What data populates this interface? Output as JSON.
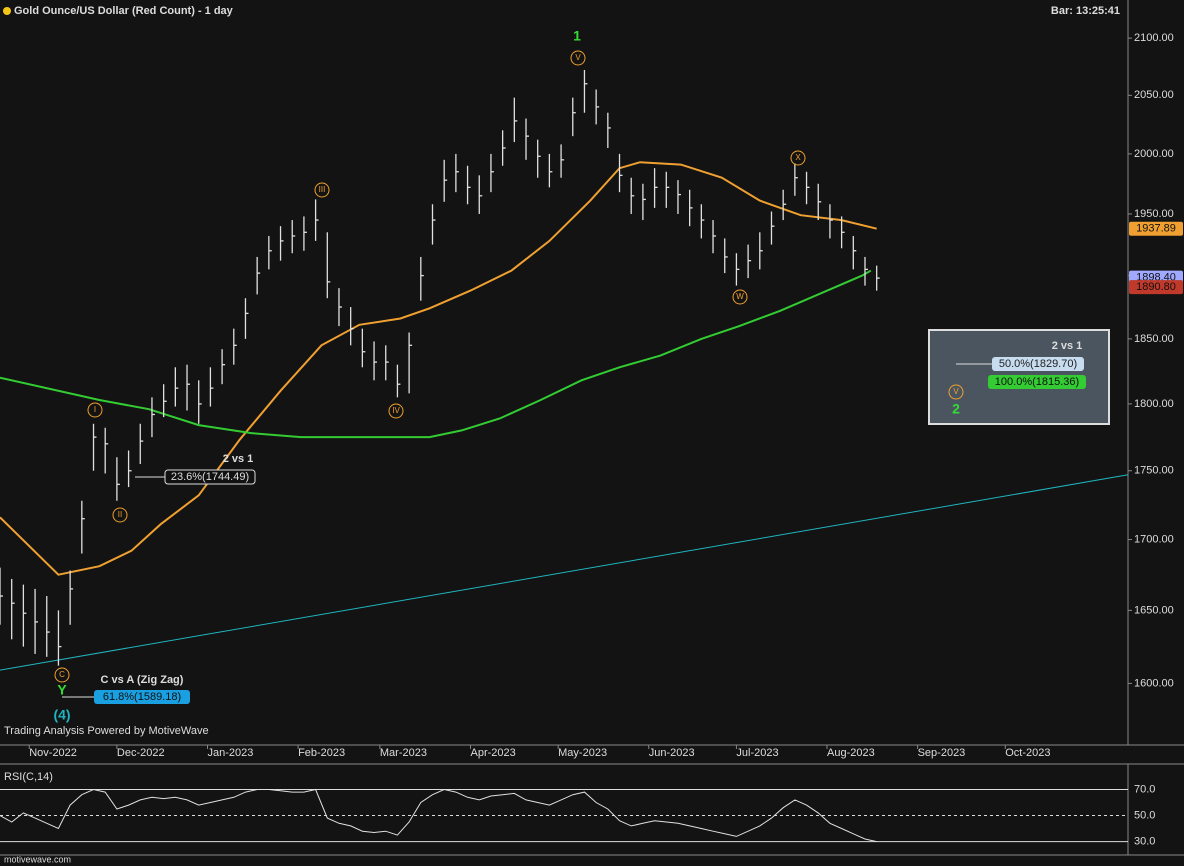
{
  "header": {
    "title": "Gold Ounce/US Dollar (Red Count) - 1 day",
    "bar_time": "Bar: 13:25:41"
  },
  "footer": {
    "powered": "Trading Analysis Powered by MotiveWave",
    "site": "motivewave.com"
  },
  "annotations": [
    "1",
    "V",
    "I",
    "II",
    "III",
    "IV",
    "W",
    "X",
    "C",
    "Y",
    "(4)",
    "V",
    "2",
    "2 vs 1",
    "23.6%(1744.49)",
    "C vs A (Zig Zag)",
    "61.8%(1589.18)",
    "2 vs 1",
    "50.0%(1829.70)",
    "100.0%(1815.36)"
  ],
  "chart_data": [
    {
      "type": "ohlc",
      "log_scale": true,
      "bar_color": "#e0e0e0",
      "x": [
        0,
        4,
        8,
        12,
        16,
        20,
        24,
        28,
        32,
        36,
        40,
        44,
        48,
        52,
        56,
        60,
        64,
        68,
        72,
        76,
        80,
        84,
        88,
        92,
        96,
        100,
        104,
        108,
        112,
        116,
        120,
        124,
        128,
        132,
        136,
        140,
        144,
        148,
        152,
        156,
        160,
        164,
        168,
        172,
        176,
        180,
        184,
        188,
        192,
        196,
        200,
        204,
        208,
        212,
        216,
        220,
        224,
        228,
        232,
        236,
        240,
        244,
        248,
        252,
        256,
        260,
        264,
        268,
        272,
        276,
        280,
        284,
        288,
        292,
        296,
        300
      ],
      "high": [
        1680,
        1672,
        1668,
        1665,
        1660,
        1650,
        1678,
        1728,
        1785,
        1782,
        1760,
        1765,
        1785,
        1805,
        1815,
        1828,
        1830,
        1818,
        1828,
        1842,
        1858,
        1882,
        1915,
        1932,
        1940,
        1945,
        1948,
        1962,
        1935,
        1890,
        1875,
        1858,
        1848,
        1845,
        1830,
        1855,
        1915,
        1958,
        1995,
        2000,
        1990,
        1982,
        2000,
        2020,
        2048,
        2030,
        2012,
        2000,
        2008,
        2048,
        2072,
        2055,
        2035,
        2000,
        1980,
        1975,
        1988,
        1985,
        1978,
        1970,
        1958,
        1945,
        1930,
        1918,
        1925,
        1935,
        1952,
        1970,
        1992,
        1985,
        1975,
        1958,
        1948,
        1932,
        1915,
        1908
      ],
      "low": [
        1640,
        1630,
        1625,
        1620,
        1618,
        1612,
        1640,
        1690,
        1750,
        1748,
        1728,
        1738,
        1755,
        1775,
        1790,
        1798,
        1795,
        1785,
        1798,
        1815,
        1830,
        1850,
        1885,
        1905,
        1912,
        1918,
        1920,
        1928,
        1882,
        1860,
        1845,
        1828,
        1818,
        1818,
        1805,
        1808,
        1880,
        1925,
        1960,
        1968,
        1958,
        1950,
        1968,
        1990,
        2010,
        1995,
        1980,
        1972,
        1980,
        2015,
        2035,
        2025,
        2005,
        1968,
        1950,
        1945,
        1955,
        1955,
        1950,
        1940,
        1930,
        1918,
        1902,
        1892,
        1898,
        1905,
        1925,
        1945,
        1965,
        1958,
        1945,
        1930,
        1922,
        1905,
        1892,
        1888
      ],
      "close": [
        1660,
        1655,
        1648,
        1642,
        1635,
        1625,
        1665,
        1715,
        1775,
        1770,
        1740,
        1750,
        1772,
        1792,
        1802,
        1812,
        1815,
        1800,
        1812,
        1830,
        1845,
        1870,
        1902,
        1920,
        1928,
        1932,
        1935,
        1945,
        1895,
        1875,
        1858,
        1840,
        1832,
        1832,
        1815,
        1845,
        1900,
        1945,
        1978,
        1985,
        1972,
        1965,
        1985,
        2005,
        2028,
        2015,
        1998,
        1985,
        1995,
        2035,
        2060,
        2040,
        2022,
        1982,
        1965,
        1962,
        1972,
        1972,
        1966,
        1955,
        1945,
        1932,
        1915,
        1905,
        1912,
        1920,
        1940,
        1958,
        1980,
        1972,
        1960,
        1945,
        1935,
        1920,
        1905,
        1898
      ],
      "lines": [
        {
          "color": "#f0a030",
          "x": [
            0,
            20,
            34,
            45,
            55,
            68,
            82,
            96,
            110,
            123,
            137,
            147,
            161,
            175,
            188,
            202,
            212,
            219,
            233,
            247,
            260,
            274,
            288,
            300
          ],
          "values": [
            1716,
            1675,
            1681,
            1692,
            1711,
            1732,
            1773,
            1810,
            1845,
            1861,
            1866,
            1874,
            1888,
            1904,
            1928,
            1961,
            1988,
            1993,
            1991,
            1980,
            1961,
            1949,
            1945,
            1937.89
          ]
        },
        {
          "color": "#33cc33",
          "x": [
            0,
            34,
            51,
            68,
            86,
            103,
            120,
            137,
            147,
            158,
            171,
            185,
            199,
            212,
            226,
            240,
            253,
            267,
            281,
            295,
            298
          ],
          "values": [
            1820,
            1803,
            1796,
            1784,
            1778,
            1775,
            1775,
            1775,
            1775,
            1780,
            1789,
            1803,
            1818,
            1828,
            1837,
            1850,
            1860,
            1872,
            1886,
            1900,
            1904
          ]
        },
        {
          "color": "#1fb5c0",
          "x": [
            0,
            386
          ],
          "values": [
            1609,
            1747
          ]
        }
      ],
      "price_tags": [
        {
          "value": 1937.89,
          "color": "#f0a030"
        },
        {
          "value": 1898.4,
          "label": "1898.40",
          "color": "#a0a8ff"
        },
        {
          "value": 1890.8,
          "label": "1890.80",
          "color": "#c0392b"
        }
      ],
      "xlim": [
        0,
        386
      ],
      "ylim": [
        1559,
        2134
      ],
      "xticks": [
        {
          "value": 10,
          "label": "Nov-2022"
        },
        {
          "value": 40,
          "label": "Dec-2022"
        },
        {
          "value": 71,
          "label": "Jan-2023"
        },
        {
          "value": 102,
          "label": "Feb-2023"
        },
        {
          "value": 130,
          "label": "Mar-2023"
        },
        {
          "value": 161,
          "label": "Apr-2023"
        },
        {
          "value": 191,
          "label": "May-2023"
        },
        {
          "value": 222,
          "label": "Jun-2023"
        },
        {
          "value": 252,
          "label": "Jul-2023"
        },
        {
          "value": 283,
          "label": "Aug-2023"
        },
        {
          "value": 314,
          "label": "Sep-2023"
        },
        {
          "value": 344,
          "label": "Oct-2023"
        }
      ],
      "yticks": [
        {
          "value": 1600,
          "label": "1600.00"
        },
        {
          "value": 1650,
          "label": "1650.00"
        },
        {
          "value": 1700,
          "label": "1700.00"
        },
        {
          "value": 1750,
          "label": "1750.00"
        },
        {
          "value": 1800,
          "label": "1800.00"
        },
        {
          "value": 1850,
          "label": "1850.00"
        },
        {
          "value": 1900,
          "label": "1900.00"
        },
        {
          "value": 1950,
          "label": "1950.00"
        },
        {
          "value": 2000,
          "label": "2000.00"
        },
        {
          "value": 2050,
          "label": "2050.00"
        },
        {
          "value": 2100,
          "label": "2100.00"
        }
      ]
    },
    {
      "type": "line",
      "title": "RSI(C,14)",
      "color": "#e0e0e0",
      "values": [
        50,
        45,
        52,
        48,
        44,
        40,
        58,
        66,
        70,
        68,
        55,
        58,
        62,
        64,
        63,
        64,
        62,
        58,
        60,
        62,
        64,
        68,
        70,
        70,
        69,
        68,
        68,
        70,
        48,
        44,
        42,
        38,
        37,
        38,
        35,
        45,
        60,
        66,
        70,
        68,
        64,
        62,
        65,
        66,
        67,
        62,
        60,
        58,
        62,
        66,
        68,
        60,
        55,
        46,
        42,
        44,
        46,
        45,
        44,
        42,
        40,
        38,
        36,
        34,
        38,
        42,
        48,
        56,
        62,
        58,
        52,
        44,
        40,
        36,
        32,
        30
      ],
      "ylim": [
        22,
        88
      ],
      "yticks": [
        {
          "value": 30,
          "label": "30.0"
        },
        {
          "value": 50,
          "label": "50.0"
        },
        {
          "value": 70,
          "label": "70.0"
        }
      ]
    }
  ]
}
